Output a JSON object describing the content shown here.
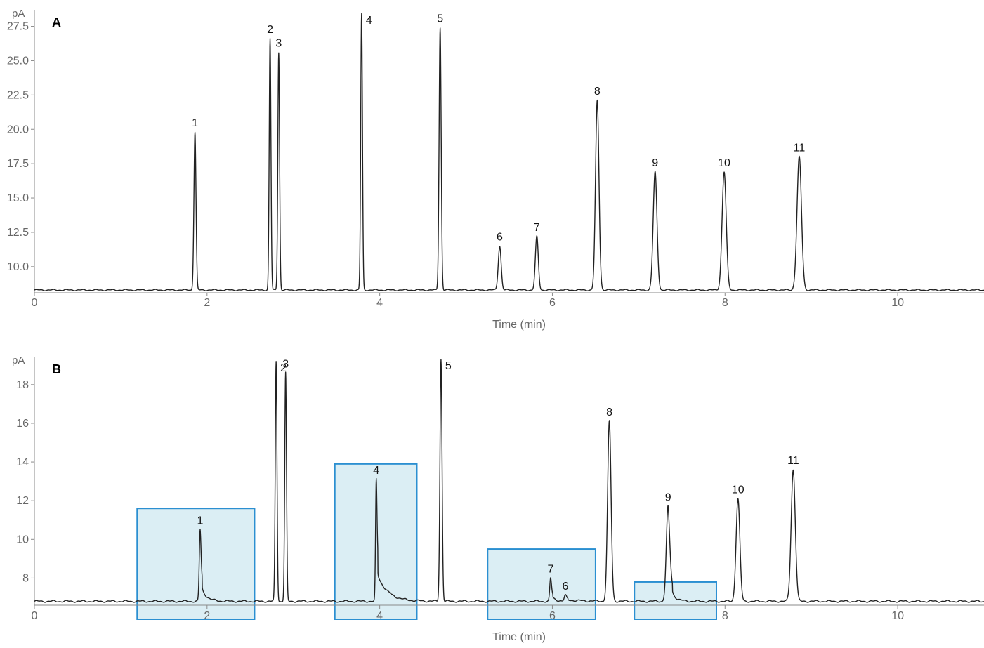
{
  "chart_data": [
    {
      "type": "line",
      "panel_label": "A",
      "unit_label": "pA",
      "xlabel": "Time (min)",
      "ylabel": "",
      "xlim": [
        0,
        11
      ],
      "ylim": [
        8.1,
        28.5
      ],
      "x_ticks": [
        0,
        2,
        4,
        6,
        8,
        10
      ],
      "x_tick_labels": [
        "0",
        "2",
        "4",
        "6",
        "8",
        "10"
      ],
      "y_ticks": [
        10.0,
        12.5,
        15.0,
        17.5,
        20.0,
        22.5,
        25.0,
        27.5
      ],
      "y_tick_labels": [
        "10.0",
        "12.5",
        "15.0",
        "17.5",
        "20.0",
        "22.5",
        "25.0",
        "27.5"
      ],
      "baseline": 8.3,
      "grid": false,
      "peaks": [
        {
          "label": "1",
          "time": 1.86,
          "height": 19.8,
          "width": 0.012,
          "tail": 0.0
        },
        {
          "label": "2",
          "time": 2.73,
          "height": 26.6,
          "width": 0.01,
          "tail": 0.0
        },
        {
          "label": "3",
          "time": 2.83,
          "height": 25.6,
          "width": 0.01,
          "tail": 0.0
        },
        {
          "label": "4",
          "time": 3.79,
          "height": 28.4,
          "width": 0.01,
          "tail": 0.0
        },
        {
          "label": "5",
          "time": 4.7,
          "height": 27.4,
          "width": 0.012,
          "tail": 0.0
        },
        {
          "label": "6",
          "time": 5.39,
          "height": 11.5,
          "width": 0.017,
          "tail": 0.0
        },
        {
          "label": "7",
          "time": 5.82,
          "height": 12.2,
          "width": 0.017,
          "tail": 0.0
        },
        {
          "label": "8",
          "time": 6.52,
          "height": 22.1,
          "width": 0.02,
          "tail": 0.0
        },
        {
          "label": "9",
          "time": 7.19,
          "height": 16.9,
          "width": 0.022,
          "tail": 0.0
        },
        {
          "label": "10",
          "time": 7.99,
          "height": 16.9,
          "width": 0.024,
          "tail": 0.0
        },
        {
          "label": "11",
          "time": 8.86,
          "height": 18.0,
          "width": 0.026,
          "tail": 0.0
        }
      ],
      "highlight_boxes": []
    },
    {
      "type": "line",
      "panel_label": "B",
      "unit_label": "pA",
      "xlabel": "Time (min)",
      "ylabel": "",
      "xlim": [
        0,
        11
      ],
      "ylim": [
        6.6,
        19.3
      ],
      "x_ticks": [
        0,
        2,
        4,
        6,
        8,
        10
      ],
      "x_tick_labels": [
        "0",
        "2",
        "4",
        "6",
        "8",
        "10"
      ],
      "y_ticks": [
        8,
        10,
        12,
        14,
        16,
        18
      ],
      "y_tick_labels": [
        "8",
        "10",
        "12",
        "14",
        "16",
        "18"
      ],
      "baseline": 6.8,
      "grid": false,
      "peaks": [
        {
          "label": "1",
          "time": 1.92,
          "height": 10.5,
          "width": 0.01,
          "tail": 0.06
        },
        {
          "label": "2",
          "time": 2.8,
          "height": 19.2,
          "width": 0.01,
          "tail": 0.0
        },
        {
          "label": "3",
          "time": 2.91,
          "height": 18.6,
          "width": 0.01,
          "tail": 0.0
        },
        {
          "label": "4",
          "time": 3.96,
          "height": 13.1,
          "width": 0.008,
          "tail": 0.12
        },
        {
          "label": "5",
          "time": 4.71,
          "height": 19.3,
          "width": 0.012,
          "tail": 0.0
        },
        {
          "label": "7",
          "time": 5.98,
          "height": 8.0,
          "width": 0.01,
          "tail": 0.05
        },
        {
          "label": "6",
          "time": 6.15,
          "height": 7.1,
          "width": 0.012,
          "tail": 0.2
        },
        {
          "label": "8",
          "time": 6.66,
          "height": 16.1,
          "width": 0.02,
          "tail": 0.0
        },
        {
          "label": "9",
          "time": 7.34,
          "height": 11.7,
          "width": 0.02,
          "tail": 0.05
        },
        {
          "label": "10",
          "time": 8.15,
          "height": 12.1,
          "width": 0.022,
          "tail": 0.0
        },
        {
          "label": "11",
          "time": 8.79,
          "height": 13.6,
          "width": 0.024,
          "tail": 0.0
        }
      ],
      "highlight_boxes": [
        {
          "x0": 1.19,
          "x1": 2.55,
          "y0": 6.6,
          "y1": 11.6
        },
        {
          "x0": 3.48,
          "x1": 4.43,
          "y0": 6.6,
          "y1": 13.9
        },
        {
          "x0": 5.25,
          "x1": 6.5,
          "y0": 6.6,
          "y1": 9.5
        },
        {
          "x0": 6.95,
          "x1": 7.9,
          "y0": 6.6,
          "y1": 7.8
        }
      ]
    }
  ],
  "colors": {
    "trace": "#222222",
    "axis": "#8a8a8a",
    "tick_text": "#666666",
    "highlight_fill": "#d5ebf2",
    "highlight_stroke": "#2b8fd1"
  }
}
